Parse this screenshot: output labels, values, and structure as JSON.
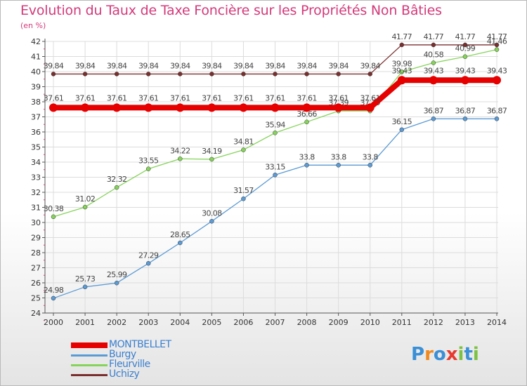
{
  "title": "Evolution du Taux de Taxe Foncière sur les Propriétés Non Bâties",
  "subtitle": "(en %)",
  "logo": {
    "letters": [
      "P",
      "r",
      "o",
      "x",
      "i",
      "t",
      "i"
    ],
    "colors": [
      "#3a8fd6",
      "#f08a1e",
      "#3a8fd6",
      "#e63b2e",
      "#7cc242",
      "#3a8fd6",
      "#7cc242"
    ]
  },
  "chart_data": {
    "type": "line",
    "title": "Evolution du Taux de Taxe Foncière sur les Propriétés Non Bâties",
    "ylabel": "(en %)",
    "x": [
      "2000",
      "2001",
      "2002",
      "2003",
      "2004",
      "2005",
      "2006",
      "2007",
      "2008",
      "2009",
      "2010",
      "2011",
      "2012",
      "2013",
      "2014"
    ],
    "ylim": [
      24,
      42
    ],
    "yticks": [
      "24",
      "25",
      "26",
      "27",
      "28",
      "29",
      "30",
      "31",
      "32",
      "33",
      "34",
      "35",
      "36",
      "37",
      "38",
      "39",
      "40",
      "41",
      "42"
    ],
    "series": [
      {
        "name": "Uchizy",
        "color": "#7a2e2e",
        "width": 1.3,
        "marker": 3,
        "values": [
          39.84,
          39.84,
          39.84,
          39.84,
          39.84,
          39.84,
          39.84,
          39.84,
          39.84,
          39.84,
          39.84,
          41.77,
          41.77,
          41.77,
          41.77
        ],
        "labels": [
          "39.84",
          "39.84",
          "39.84",
          "39.84",
          "39.84",
          "39.84",
          "39.84",
          "39.84",
          "39.84",
          "39.84",
          "39.84",
          "41.77",
          "41.77",
          "41.77",
          "41.77"
        ]
      },
      {
        "name": "Fleurville",
        "color": "#86d35a",
        "width": 1.3,
        "marker": 3,
        "values": [
          30.38,
          31.02,
          32.32,
          33.55,
          34.22,
          34.19,
          34.81,
          35.94,
          36.66,
          37.39,
          37.39,
          39.98,
          40.58,
          40.99,
          41.46
        ],
        "labels": [
          "30.38",
          "31.02",
          "32.32",
          "33.55",
          "34.22",
          "34.19",
          "34.81",
          "35.94",
          "36.66",
          "37.39",
          "37.39",
          "39.98",
          "40.58",
          "40.99",
          "41.46"
        ]
      },
      {
        "name": "Burgy",
        "color": "#5b9bd5",
        "width": 1.3,
        "marker": 3,
        "values": [
          24.98,
          25.73,
          25.99,
          27.29,
          28.65,
          30.08,
          31.57,
          33.15,
          33.8,
          33.8,
          33.8,
          36.15,
          36.87,
          36.87,
          36.87
        ],
        "labels": [
          "24.98",
          "25.73",
          "25.99",
          "27.29",
          "28.65",
          "30.08",
          "31.57",
          "33.15",
          "33.8",
          "33.8",
          "33.8",
          "36.15",
          "36.87",
          "36.87",
          "36.87"
        ]
      },
      {
        "name": "MONTBELLET",
        "color": "#e60000",
        "width": 8,
        "marker": 6,
        "values": [
          37.61,
          37.61,
          37.61,
          37.61,
          37.61,
          37.61,
          37.61,
          37.61,
          37.61,
          37.61,
          37.61,
          39.43,
          39.43,
          39.43,
          39.43
        ],
        "labels": [
          "37.61",
          "37.61",
          "37.61",
          "37.61",
          "37.61",
          "37.61",
          "37.61",
          "37.61",
          "37.61",
          "37.61",
          "37.61",
          "39.43",
          "39.43",
          "39.43",
          "39.43"
        ]
      }
    ],
    "legend": [
      "MONTBELLET",
      "Burgy",
      "Fleurville",
      "Uchizy"
    ],
    "legend_colors": [
      "#e60000",
      "#5b9bd5",
      "#86d35a",
      "#7a2e2e"
    ],
    "grid": true,
    "legend_position": "bottom-left"
  }
}
